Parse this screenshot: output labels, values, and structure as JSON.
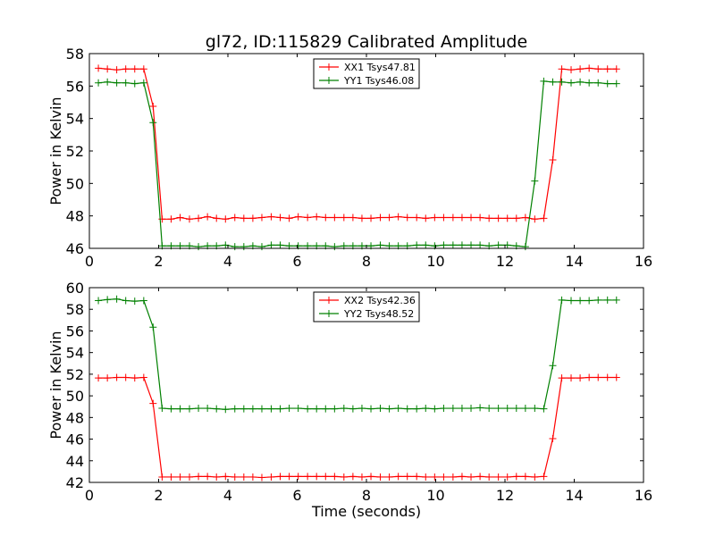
{
  "figure": {
    "title": "gl72, ID:115829 Calibrated Amplitude"
  },
  "chart_data": [
    {
      "type": "line",
      "xlabel": "",
      "ylabel": "Power in Kelvin",
      "xlim": [
        0,
        16
      ],
      "ylim": [
        46,
        58
      ],
      "xticks": [
        "0",
        "2",
        "4",
        "6",
        "8",
        "10",
        "12",
        "14",
        "16"
      ],
      "yticks": [
        "46",
        "48",
        "50",
        "52",
        "54",
        "56",
        "58"
      ],
      "grid": false,
      "legend_position": "top-center",
      "series": [
        {
          "name": "XX1 Tsys47.81",
          "color": "#ff0000",
          "x": [
            0.26,
            0.52,
            0.79,
            1.05,
            1.31,
            1.57,
            1.84,
            2.1,
            2.36,
            2.62,
            2.89,
            3.15,
            3.41,
            3.67,
            3.93,
            4.2,
            4.46,
            4.72,
            4.98,
            5.25,
            5.51,
            5.77,
            6.03,
            6.3,
            6.56,
            6.82,
            7.08,
            7.35,
            7.61,
            7.87,
            8.13,
            8.4,
            8.66,
            8.92,
            9.18,
            9.45,
            9.71,
            9.97,
            10.23,
            10.5,
            10.76,
            11.02,
            11.28,
            11.54,
            11.81,
            12.07,
            12.33,
            12.59,
            12.86,
            13.12,
            13.38,
            13.64,
            13.91,
            14.17,
            14.43,
            14.69,
            14.96,
            15.22
          ],
          "y": [
            57.1,
            57.05,
            57.0,
            57.05,
            57.05,
            57.05,
            54.75,
            47.8,
            47.8,
            47.9,
            47.8,
            47.85,
            47.95,
            47.85,
            47.8,
            47.9,
            47.85,
            47.85,
            47.9,
            47.95,
            47.9,
            47.85,
            47.95,
            47.9,
            47.95,
            47.9,
            47.9,
            47.9,
            47.9,
            47.85,
            47.85,
            47.9,
            47.9,
            47.95,
            47.9,
            47.9,
            47.85,
            47.9,
            47.9,
            47.9,
            47.9,
            47.9,
            47.9,
            47.85,
            47.85,
            47.85,
            47.85,
            47.9,
            47.8,
            47.85,
            51.45,
            57.05,
            57.0,
            57.05,
            57.1,
            57.05,
            57.05,
            57.05
          ]
        },
        {
          "name": "YY1 Tsys46.08",
          "color": "#008000",
          "x": [
            0.26,
            0.52,
            0.79,
            1.05,
            1.31,
            1.57,
            1.84,
            2.1,
            2.36,
            2.62,
            2.89,
            3.15,
            3.41,
            3.67,
            3.93,
            4.2,
            4.46,
            4.72,
            4.98,
            5.25,
            5.51,
            5.77,
            6.03,
            6.3,
            6.56,
            6.82,
            7.08,
            7.35,
            7.61,
            7.87,
            8.13,
            8.4,
            8.66,
            8.92,
            9.18,
            9.45,
            9.71,
            9.97,
            10.23,
            10.5,
            10.76,
            11.02,
            11.28,
            11.54,
            11.81,
            12.07,
            12.33,
            12.59,
            12.86,
            13.12,
            13.38,
            13.64,
            13.91,
            14.17,
            14.43,
            14.69,
            14.96,
            15.22
          ],
          "y": [
            56.2,
            56.25,
            56.2,
            56.2,
            56.15,
            56.2,
            53.75,
            46.15,
            46.15,
            46.15,
            46.15,
            46.1,
            46.15,
            46.15,
            46.2,
            46.1,
            46.1,
            46.15,
            46.1,
            46.2,
            46.2,
            46.15,
            46.15,
            46.15,
            46.15,
            46.15,
            46.1,
            46.15,
            46.15,
            46.15,
            46.15,
            46.2,
            46.15,
            46.15,
            46.15,
            46.2,
            46.2,
            46.15,
            46.2,
            46.2,
            46.2,
            46.2,
            46.2,
            46.15,
            46.2,
            46.2,
            46.15,
            46.1,
            50.15,
            56.3,
            56.25,
            56.25,
            56.2,
            56.25,
            56.2,
            56.2,
            56.15,
            56.15
          ]
        }
      ]
    },
    {
      "type": "line",
      "xlabel": "Time (seconds)",
      "ylabel": "Power in Kelvin",
      "xlim": [
        0,
        16
      ],
      "ylim": [
        42,
        60
      ],
      "xticks": [
        "0",
        "2",
        "4",
        "6",
        "8",
        "10",
        "12",
        "14",
        "16"
      ],
      "yticks": [
        "42",
        "44",
        "46",
        "48",
        "50",
        "52",
        "54",
        "56",
        "58",
        "60"
      ],
      "grid": false,
      "legend_position": "top-center",
      "series": [
        {
          "name": "XX2 Tsys42.36",
          "color": "#ff0000",
          "x": [
            0.26,
            0.52,
            0.79,
            1.05,
            1.31,
            1.57,
            1.84,
            2.1,
            2.36,
            2.62,
            2.89,
            3.15,
            3.41,
            3.67,
            3.93,
            4.2,
            4.46,
            4.72,
            4.98,
            5.25,
            5.51,
            5.77,
            6.03,
            6.3,
            6.56,
            6.82,
            7.08,
            7.35,
            7.61,
            7.87,
            8.13,
            8.4,
            8.66,
            8.92,
            9.18,
            9.45,
            9.71,
            9.97,
            10.23,
            10.5,
            10.76,
            11.02,
            11.28,
            11.54,
            11.81,
            12.07,
            12.33,
            12.59,
            12.86,
            13.12,
            13.38,
            13.64,
            13.91,
            14.17,
            14.43,
            14.69,
            14.96,
            15.22
          ],
          "y": [
            51.65,
            51.65,
            51.7,
            51.7,
            51.65,
            51.7,
            49.3,
            42.5,
            42.5,
            42.5,
            42.5,
            42.55,
            42.55,
            42.5,
            42.55,
            42.5,
            42.5,
            42.5,
            42.45,
            42.5,
            42.55,
            42.55,
            42.55,
            42.55,
            42.55,
            42.55,
            42.55,
            42.5,
            42.55,
            42.5,
            42.55,
            42.5,
            42.5,
            42.55,
            42.55,
            42.55,
            42.5,
            42.5,
            42.5,
            42.5,
            42.55,
            42.5,
            42.55,
            42.5,
            42.5,
            42.5,
            42.55,
            42.55,
            42.5,
            42.55,
            46.05,
            51.65,
            51.65,
            51.65,
            51.7,
            51.7,
            51.7,
            51.7
          ]
        },
        {
          "name": "YY2 Tsys48.52",
          "color": "#008000",
          "x": [
            0.26,
            0.52,
            0.79,
            1.05,
            1.31,
            1.57,
            1.84,
            2.1,
            2.36,
            2.62,
            2.89,
            3.15,
            3.41,
            3.67,
            3.93,
            4.2,
            4.46,
            4.72,
            4.98,
            5.25,
            5.51,
            5.77,
            6.03,
            6.3,
            6.56,
            6.82,
            7.08,
            7.35,
            7.61,
            7.87,
            8.13,
            8.4,
            8.66,
            8.92,
            9.18,
            9.45,
            9.71,
            9.97,
            10.23,
            10.5,
            10.76,
            11.02,
            11.28,
            11.54,
            11.81,
            12.07,
            12.33,
            12.59,
            12.86,
            13.12,
            13.38,
            13.64,
            13.91,
            14.17,
            14.43,
            14.69,
            14.96,
            15.22
          ],
          "y": [
            58.8,
            58.9,
            58.95,
            58.8,
            58.75,
            58.8,
            56.35,
            48.85,
            48.8,
            48.8,
            48.8,
            48.85,
            48.85,
            48.8,
            48.75,
            48.8,
            48.8,
            48.8,
            48.8,
            48.8,
            48.8,
            48.85,
            48.85,
            48.8,
            48.8,
            48.8,
            48.8,
            48.85,
            48.8,
            48.85,
            48.8,
            48.85,
            48.8,
            48.85,
            48.8,
            48.8,
            48.85,
            48.8,
            48.85,
            48.85,
            48.85,
            48.85,
            48.9,
            48.85,
            48.85,
            48.85,
            48.85,
            48.85,
            48.85,
            48.8,
            52.8,
            58.85,
            58.8,
            58.8,
            58.8,
            58.85,
            58.85,
            58.85
          ]
        }
      ]
    }
  ]
}
